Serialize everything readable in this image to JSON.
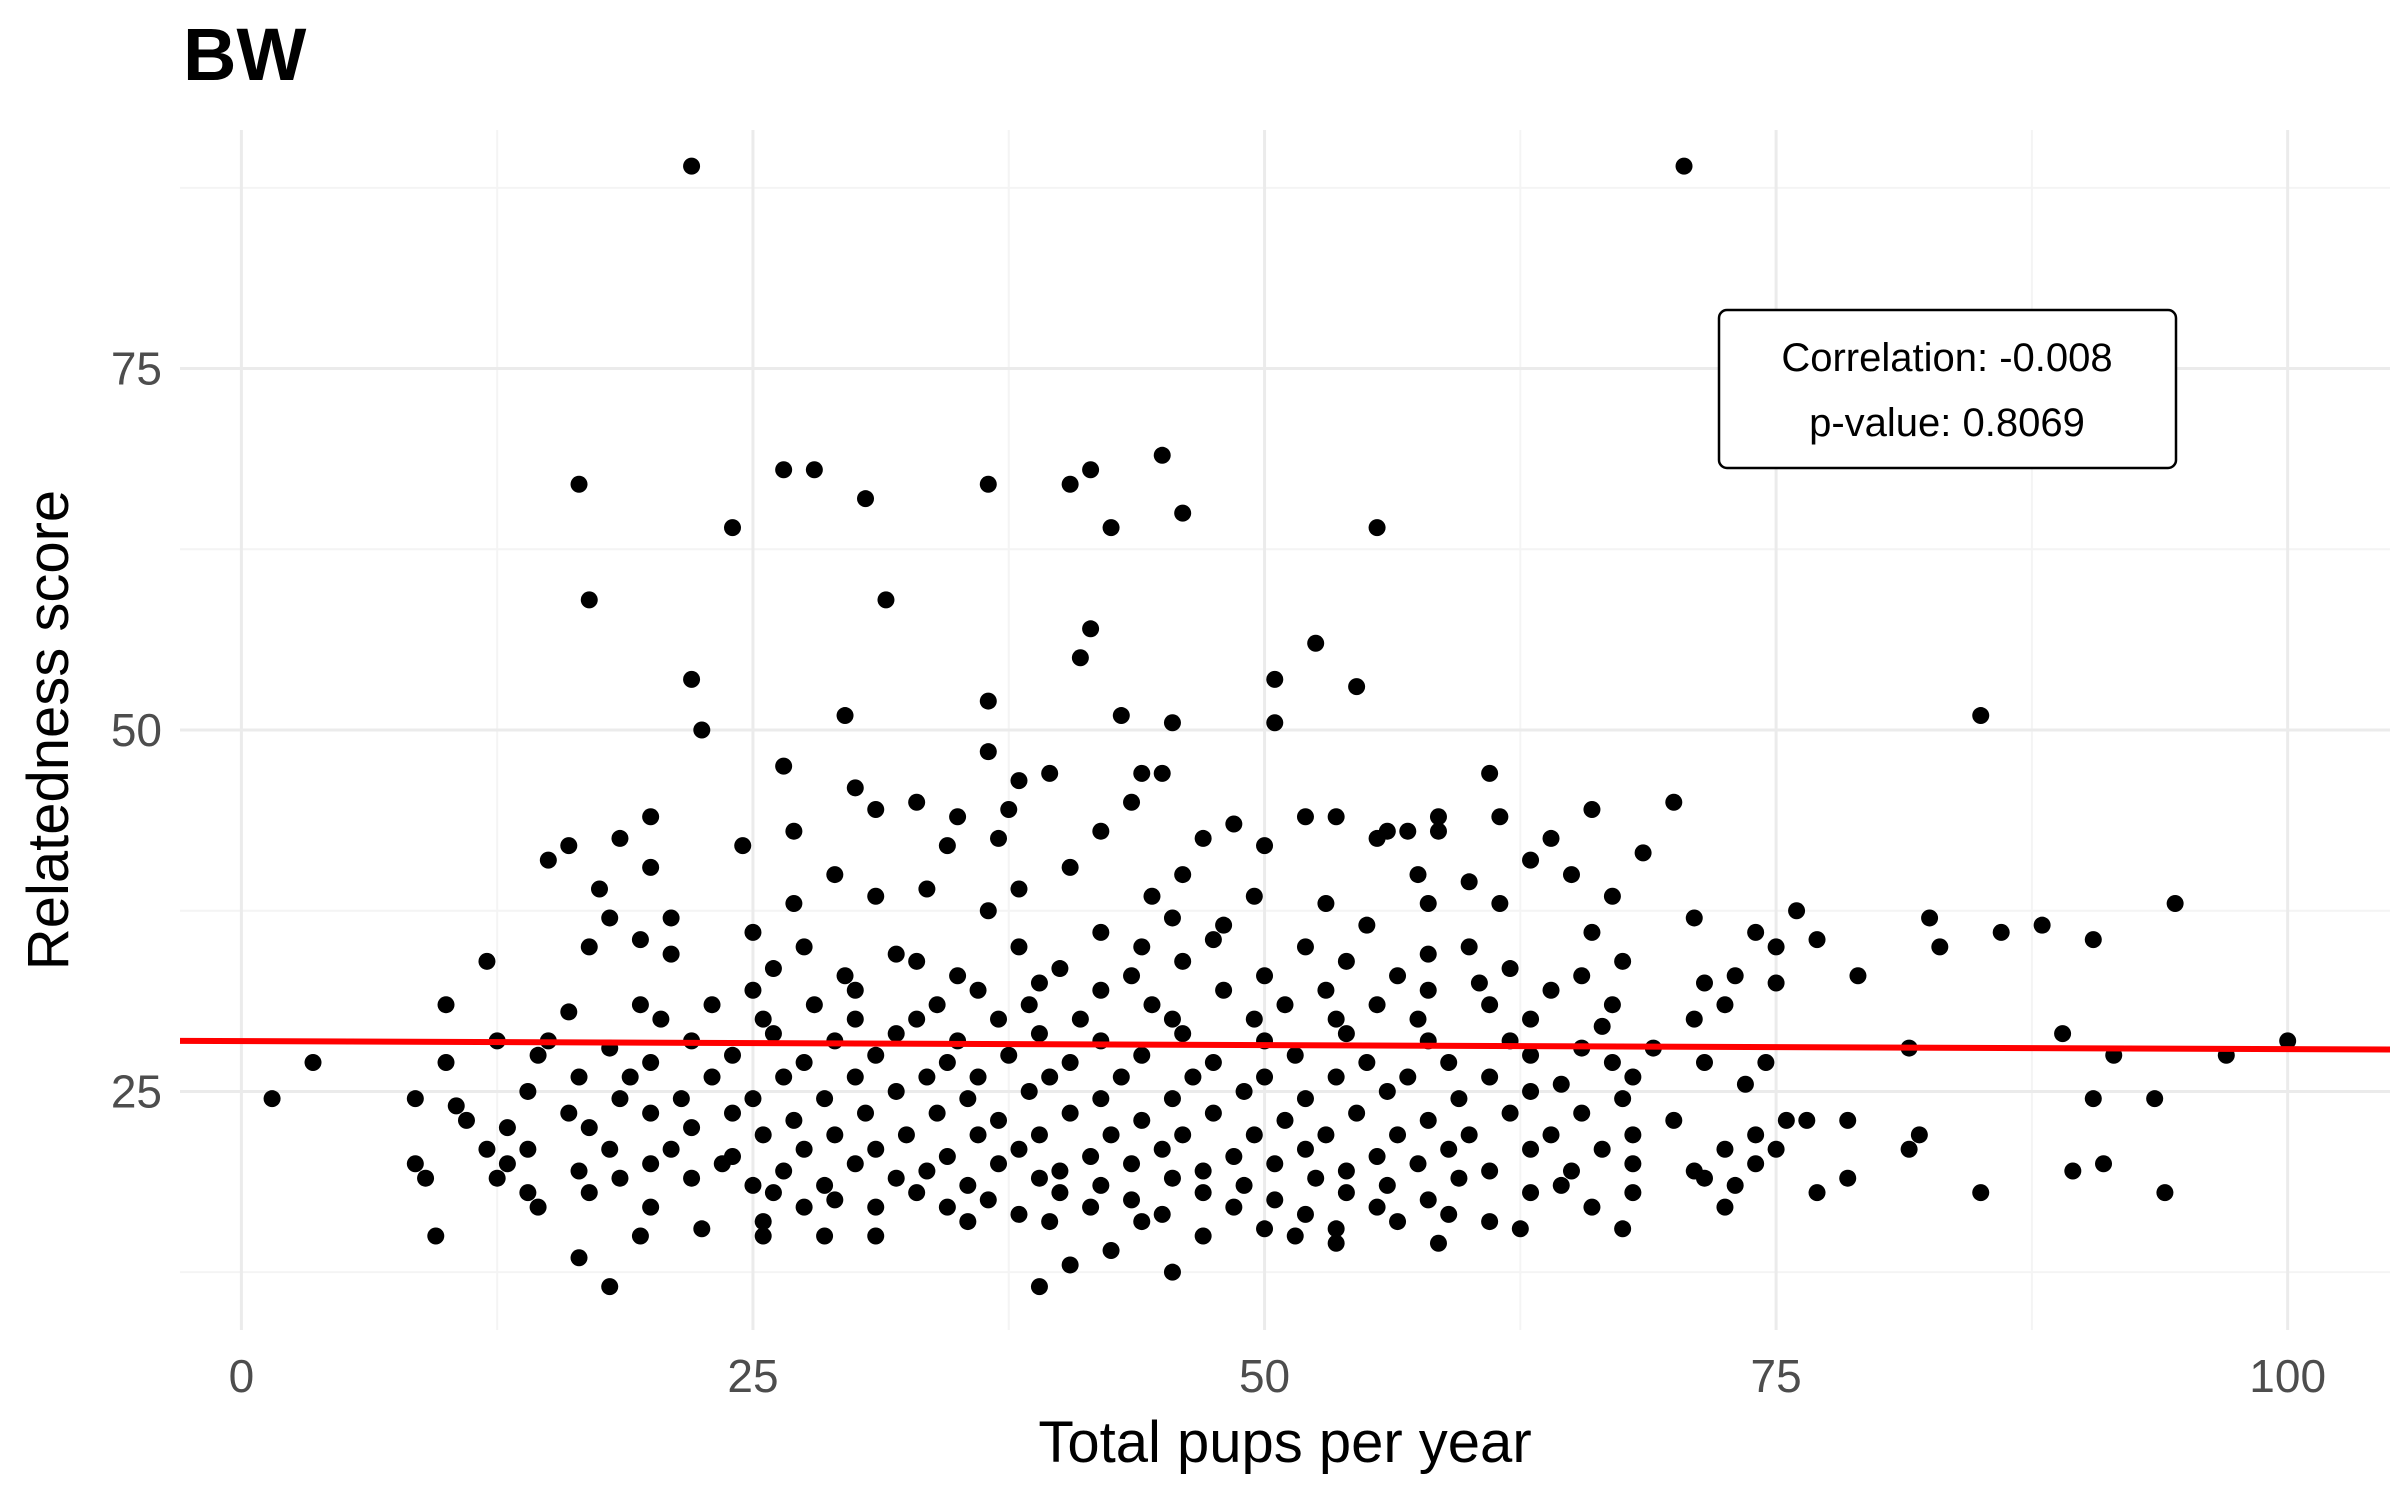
{
  "chart_data": {
    "type": "scatter",
    "title": "BW",
    "xlabel": "Total pups per year",
    "ylabel": "Relatedness score",
    "xlim": [
      -3,
      105
    ],
    "ylim": [
      8.5,
      91.5
    ],
    "x_ticks": [
      0,
      25,
      50,
      75,
      100
    ],
    "y_ticks": [
      25,
      50,
      75
    ],
    "x_tick_labels": [
      "0",
      "25",
      "50",
      "75",
      "100"
    ],
    "y_tick_labels": [
      "25",
      "50",
      "75"
    ],
    "grid": true,
    "legend": "none",
    "trend_line": {
      "x": [
        -3,
        105
      ],
      "y": [
        28.5,
        27.9
      ],
      "color": "#ff0000"
    },
    "annotation": {
      "lines": [
        "Correlation: -0.008",
        "p-value: 0.8069"
      ],
      "anchor": {
        "x": 83,
        "y": 75
      }
    },
    "point_color": "#000000",
    "points": [
      [
        22,
        89
      ],
      [
        70.5,
        89
      ],
      [
        26.5,
        68
      ],
      [
        28,
        68
      ],
      [
        45,
        69
      ],
      [
        41.5,
        68
      ],
      [
        40.5,
        67
      ],
      [
        36.5,
        67
      ],
      [
        16.5,
        67
      ],
      [
        30.5,
        66
      ],
      [
        46,
        65
      ],
      [
        24,
        64
      ],
      [
        42.5,
        64
      ],
      [
        55.5,
        64
      ],
      [
        17,
        59
      ],
      [
        31.5,
        59
      ],
      [
        41.5,
        57
      ],
      [
        52.5,
        56
      ],
      [
        41,
        55
      ],
      [
        22,
        53.5
      ],
      [
        50.5,
        53.5
      ],
      [
        54.5,
        53
      ],
      [
        36.5,
        52
      ],
      [
        43,
        51
      ],
      [
        29.5,
        51
      ],
      [
        85,
        51
      ],
      [
        50.5,
        50.5
      ],
      [
        45.5,
        50.5
      ],
      [
        22.5,
        50
      ],
      [
        36.5,
        48.5
      ],
      [
        26.5,
        47.5
      ],
      [
        61,
        47
      ],
      [
        39.5,
        47
      ],
      [
        44,
        47
      ],
      [
        30,
        46
      ],
      [
        38,
        46.5
      ],
      [
        45,
        47
      ],
      [
        33,
        45
      ],
      [
        43.5,
        45
      ],
      [
        37.5,
        44.5
      ],
      [
        52,
        44
      ],
      [
        53.5,
        44
      ],
      [
        58.5,
        44
      ],
      [
        66,
        44.5
      ],
      [
        70,
        45
      ],
      [
        61.5,
        44
      ],
      [
        20,
        44
      ],
      [
        35,
        44
      ],
      [
        31,
        44.5
      ],
      [
        48.5,
        43.5
      ],
      [
        27,
        43
      ],
      [
        42,
        43
      ],
      [
        56,
        43
      ],
      [
        55.5,
        42.5
      ],
      [
        57,
        43
      ],
      [
        58.5,
        43
      ],
      [
        18.5,
        42.5
      ],
      [
        16,
        42
      ],
      [
        24.5,
        42
      ],
      [
        37,
        42.5
      ],
      [
        64,
        42.5
      ],
      [
        68.5,
        41.5
      ],
      [
        47,
        42.5
      ],
      [
        50,
        42
      ],
      [
        63,
        41
      ],
      [
        34.5,
        42
      ],
      [
        15,
        41
      ],
      [
        20,
        40.5
      ],
      [
        29,
        40
      ],
      [
        40.5,
        40.5
      ],
      [
        46,
        40
      ],
      [
        57.5,
        40
      ],
      [
        60,
        39.5
      ],
      [
        65,
        40
      ],
      [
        17.5,
        39
      ],
      [
        33.5,
        39
      ],
      [
        38,
        39
      ],
      [
        44.5,
        38.5
      ],
      [
        49.5,
        38.5
      ],
      [
        53,
        38
      ],
      [
        67,
        38.5
      ],
      [
        27,
        38
      ],
      [
        31,
        38.5
      ],
      [
        36.5,
        37.5
      ],
      [
        45.5,
        37
      ],
      [
        58,
        38
      ],
      [
        61.5,
        38
      ],
      [
        71,
        37
      ],
      [
        76,
        37.5
      ],
      [
        82.5,
        37
      ],
      [
        88,
        36.5
      ],
      [
        94.5,
        38
      ],
      [
        18,
        37
      ],
      [
        21,
        37
      ],
      [
        19.5,
        35.5
      ],
      [
        25,
        36
      ],
      [
        42,
        36
      ],
      [
        48,
        36.5
      ],
      [
        55,
        36.5
      ],
      [
        66,
        36
      ],
      [
        74,
        36
      ],
      [
        77,
        35.5
      ],
      [
        83,
        35
      ],
      [
        86,
        36
      ],
      [
        90.5,
        35.5
      ],
      [
        17,
        35
      ],
      [
        27.5,
        35
      ],
      [
        32,
        34.5
      ],
      [
        38,
        35
      ],
      [
        44,
        35
      ],
      [
        47.5,
        35.5
      ],
      [
        52,
        35
      ],
      [
        58,
        34.5
      ],
      [
        60,
        35
      ],
      [
        75,
        35
      ],
      [
        12,
        34
      ],
      [
        21,
        34.5
      ],
      [
        26,
        33.5
      ],
      [
        33,
        34
      ],
      [
        40,
        33.5
      ],
      [
        46,
        34
      ],
      [
        54,
        34
      ],
      [
        62,
        33.5
      ],
      [
        67.5,
        34
      ],
      [
        73,
        33
      ],
      [
        79,
        33
      ],
      [
        29.5,
        33
      ],
      [
        35,
        33
      ],
      [
        39,
        32.5
      ],
      [
        43.5,
        33
      ],
      [
        50,
        33
      ],
      [
        56.5,
        33
      ],
      [
        60.5,
        32.5
      ],
      [
        65.5,
        33
      ],
      [
        71.5,
        32.5
      ],
      [
        75,
        32.5
      ],
      [
        25,
        32
      ],
      [
        30,
        32
      ],
      [
        36,
        32
      ],
      [
        42,
        32
      ],
      [
        48,
        32
      ],
      [
        53,
        32
      ],
      [
        58,
        32
      ],
      [
        64,
        32
      ],
      [
        19.5,
        31
      ],
      [
        10,
        31
      ],
      [
        16,
        30.5
      ],
      [
        23,
        31
      ],
      [
        28,
        31
      ],
      [
        34,
        31
      ],
      [
        38.5,
        31
      ],
      [
        44.5,
        31
      ],
      [
        51,
        31
      ],
      [
        55.5,
        31
      ],
      [
        61,
        31
      ],
      [
        67,
        31
      ],
      [
        72.5,
        31
      ],
      [
        20.5,
        30
      ],
      [
        25.5,
        30
      ],
      [
        30,
        30
      ],
      [
        33,
        30
      ],
      [
        37,
        30
      ],
      [
        41,
        30
      ],
      [
        45.5,
        30
      ],
      [
        49.5,
        30
      ],
      [
        53.5,
        30
      ],
      [
        57.5,
        30
      ],
      [
        63,
        30
      ],
      [
        66.5,
        29.5
      ],
      [
        71,
        30
      ],
      [
        12.5,
        28.5
      ],
      [
        15,
        28.5
      ],
      [
        18,
        28
      ],
      [
        22,
        28.5
      ],
      [
        26,
        29
      ],
      [
        29,
        28.5
      ],
      [
        32,
        29
      ],
      [
        35,
        28.5
      ],
      [
        39,
        29
      ],
      [
        42,
        28.5
      ],
      [
        46,
        29
      ],
      [
        50,
        28.5
      ],
      [
        54,
        29
      ],
      [
        58,
        28.5
      ],
      [
        62,
        28.5
      ],
      [
        65.5,
        28
      ],
      [
        69,
        28
      ],
      [
        81.5,
        28
      ],
      [
        89,
        29
      ],
      [
        14.5,
        27.5
      ],
      [
        20,
        27
      ],
      [
        24,
        27.5
      ],
      [
        27.5,
        27
      ],
      [
        31,
        27.5
      ],
      [
        34.5,
        27
      ],
      [
        37.5,
        27.5
      ],
      [
        40.5,
        27
      ],
      [
        44,
        27.5
      ],
      [
        47.5,
        27
      ],
      [
        51.5,
        27.5
      ],
      [
        55,
        27
      ],
      [
        59,
        27
      ],
      [
        63,
        27.5
      ],
      [
        67,
        27
      ],
      [
        71.5,
        27
      ],
      [
        74.5,
        27
      ],
      [
        91.5,
        27.5
      ],
      [
        97,
        27.5
      ],
      [
        100,
        28.5
      ],
      [
        3.5,
        27
      ],
      [
        10,
        27
      ],
      [
        16.5,
        26
      ],
      [
        19,
        26
      ],
      [
        23,
        26
      ],
      [
        26.5,
        26
      ],
      [
        30,
        26
      ],
      [
        33.5,
        26
      ],
      [
        36,
        26
      ],
      [
        39.5,
        26
      ],
      [
        43,
        26
      ],
      [
        46.5,
        26
      ],
      [
        50,
        26
      ],
      [
        53.5,
        26
      ],
      [
        57,
        26
      ],
      [
        61,
        26
      ],
      [
        64.5,
        25.5
      ],
      [
        68,
        26
      ],
      [
        73.5,
        25.5
      ],
      [
        1.5,
        24.5
      ],
      [
        8.5,
        24.5
      ],
      [
        14,
        25
      ],
      [
        18.5,
        24.5
      ],
      [
        21.5,
        24.5
      ],
      [
        25,
        24.5
      ],
      [
        28.5,
        24.5
      ],
      [
        32,
        25
      ],
      [
        35.5,
        24.5
      ],
      [
        38.5,
        25
      ],
      [
        42,
        24.5
      ],
      [
        45.5,
        24.5
      ],
      [
        49,
        25
      ],
      [
        52,
        24.5
      ],
      [
        56,
        25
      ],
      [
        59.5,
        24.5
      ],
      [
        63,
        25
      ],
      [
        67.5,
        24.5
      ],
      [
        90.5,
        24.5
      ],
      [
        93.5,
        24.5
      ],
      [
        10.5,
        24
      ],
      [
        16,
        23.5
      ],
      [
        20,
        23.5
      ],
      [
        24,
        23.5
      ],
      [
        27,
        23
      ],
      [
        30.5,
        23.5
      ],
      [
        34,
        23.5
      ],
      [
        37,
        23
      ],
      [
        40.5,
        23.5
      ],
      [
        44,
        23
      ],
      [
        47.5,
        23.5
      ],
      [
        51,
        23
      ],
      [
        54.5,
        23.5
      ],
      [
        58,
        23
      ],
      [
        62,
        23.5
      ],
      [
        65.5,
        23.5
      ],
      [
        70,
        23
      ],
      [
        75.5,
        23
      ],
      [
        76.5,
        23
      ],
      [
        78.5,
        23
      ],
      [
        11,
        23
      ],
      [
        13,
        22.5
      ],
      [
        17,
        22.5
      ],
      [
        22,
        22.5
      ],
      [
        25.5,
        22
      ],
      [
        29,
        22
      ],
      [
        32.5,
        22
      ],
      [
        36,
        22
      ],
      [
        39,
        22
      ],
      [
        42.5,
        22
      ],
      [
        46,
        22
      ],
      [
        49.5,
        22
      ],
      [
        53,
        22
      ],
      [
        56.5,
        22
      ],
      [
        60,
        22
      ],
      [
        64,
        22
      ],
      [
        68,
        22
      ],
      [
        82,
        22
      ],
      [
        81.5,
        21
      ],
      [
        74,
        22
      ],
      [
        12,
        21
      ],
      [
        14,
        21
      ],
      [
        18,
        21
      ],
      [
        21,
        21
      ],
      [
        24,
        20.5
      ],
      [
        27.5,
        21
      ],
      [
        31,
        21
      ],
      [
        34.5,
        20.5
      ],
      [
        38,
        21
      ],
      [
        41.5,
        20.5
      ],
      [
        45,
        21
      ],
      [
        48.5,
        20.5
      ],
      [
        52,
        21
      ],
      [
        55.5,
        20.5
      ],
      [
        59,
        21
      ],
      [
        63,
        21
      ],
      [
        66.5,
        21
      ],
      [
        72.5,
        21
      ],
      [
        75,
        21
      ],
      [
        8.5,
        20
      ],
      [
        13,
        20
      ],
      [
        16.5,
        19.5
      ],
      [
        20,
        20
      ],
      [
        23.5,
        20
      ],
      [
        26.5,
        19.5
      ],
      [
        30,
        20
      ],
      [
        33.5,
        19.5
      ],
      [
        37,
        20
      ],
      [
        40,
        19.5
      ],
      [
        43.5,
        20
      ],
      [
        47,
        19.5
      ],
      [
        50.5,
        20
      ],
      [
        54,
        19.5
      ],
      [
        57.5,
        20
      ],
      [
        61,
        19.5
      ],
      [
        65,
        19.5
      ],
      [
        68,
        20
      ],
      [
        71,
        19.5
      ],
      [
        74,
        20
      ],
      [
        89.5,
        19.5
      ],
      [
        91,
        20
      ],
      [
        9,
        19
      ],
      [
        12.5,
        19
      ],
      [
        18.5,
        19
      ],
      [
        22,
        19
      ],
      [
        25,
        18.5
      ],
      [
        28.5,
        18.5
      ],
      [
        32,
        19
      ],
      [
        35.5,
        18.5
      ],
      [
        39,
        19
      ],
      [
        42,
        18.5
      ],
      [
        45.5,
        19
      ],
      [
        49,
        18.5
      ],
      [
        52.5,
        19
      ],
      [
        56,
        18.5
      ],
      [
        59.5,
        19
      ],
      [
        64.5,
        18.5
      ],
      [
        71.5,
        19
      ],
      [
        78.5,
        19
      ],
      [
        14,
        18
      ],
      [
        17,
        18
      ],
      [
        26,
        18
      ],
      [
        29,
        17.5
      ],
      [
        33,
        18
      ],
      [
        36.5,
        17.5
      ],
      [
        40,
        18
      ],
      [
        43.5,
        17.5
      ],
      [
        47,
        18
      ],
      [
        50.5,
        17.5
      ],
      [
        54,
        18
      ],
      [
        58,
        17.5
      ],
      [
        63,
        18
      ],
      [
        68,
        18
      ],
      [
        73,
        18.5
      ],
      [
        77,
        18
      ],
      [
        85,
        18
      ],
      [
        94,
        18
      ],
      [
        14.5,
        17
      ],
      [
        20,
        17
      ],
      [
        27.5,
        17
      ],
      [
        31,
        17
      ],
      [
        34.5,
        17
      ],
      [
        38,
        16.5
      ],
      [
        41.5,
        17
      ],
      [
        45,
        16.5
      ],
      [
        48.5,
        17
      ],
      [
        52,
        16.5
      ],
      [
        55.5,
        17
      ],
      [
        59,
        16.5
      ],
      [
        61,
        16
      ],
      [
        66,
        17
      ],
      [
        72.5,
        17
      ],
      [
        25.5,
        16
      ],
      [
        35.5,
        16
      ],
      [
        39.5,
        16
      ],
      [
        44,
        16
      ],
      [
        50,
        15.5
      ],
      [
        53.5,
        15.5
      ],
      [
        56.5,
        16
      ],
      [
        62.5,
        15.5
      ],
      [
        67.5,
        15.5
      ],
      [
        9.5,
        15
      ],
      [
        19.5,
        15
      ],
      [
        22.5,
        15.5
      ],
      [
        25.5,
        15
      ],
      [
        28.5,
        15
      ],
      [
        31,
        15
      ],
      [
        47,
        15
      ],
      [
        51.5,
        15
      ],
      [
        53.5,
        14.5
      ],
      [
        58.5,
        14.5
      ],
      [
        42.5,
        14
      ],
      [
        16.5,
        13.5
      ],
      [
        40.5,
        13
      ],
      [
        45.5,
        12.5
      ],
      [
        18,
        11.5
      ],
      [
        39,
        11.5
      ]
    ]
  }
}
